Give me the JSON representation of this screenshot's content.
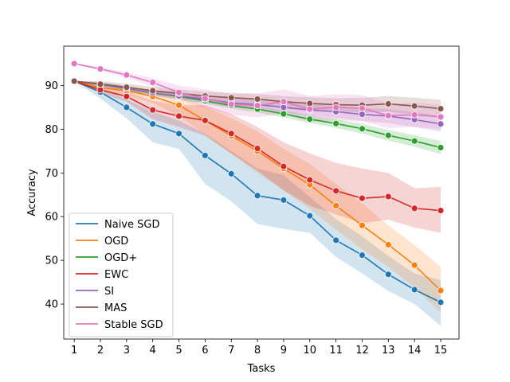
{
  "chart_data": {
    "type": "line",
    "title": "",
    "xlabel": "Tasks",
    "ylabel": "Accuracy",
    "xlim": [
      0.6,
      15.7
    ],
    "ylim": [
      32,
      99
    ],
    "x": [
      1,
      2,
      3,
      4,
      5,
      6,
      7,
      8,
      9,
      10,
      11,
      12,
      13,
      14,
      15
    ],
    "x_ticks": [
      1,
      2,
      3,
      4,
      5,
      6,
      7,
      8,
      9,
      10,
      11,
      12,
      13,
      14,
      15
    ],
    "y_ticks": [
      40,
      50,
      60,
      70,
      80,
      90
    ],
    "grid": false,
    "legend_position": "lower-left",
    "series": [
      {
        "name": "Naive SGD",
        "color": "#1f77b4",
        "values": [
          91.0,
          88.5,
          85.0,
          81.2,
          79.0,
          74.0,
          69.8,
          64.8,
          63.8,
          60.2,
          54.6,
          51.2,
          46.8,
          43.3,
          40.4
        ],
        "lower": [
          91.0,
          87.0,
          82.5,
          77.0,
          75.5,
          67.5,
          63.5,
          58.3,
          57.2,
          56.3,
          50.8,
          47.0,
          43.0,
          40.0,
          35.0
        ],
        "upper": [
          91.0,
          89.5,
          86.8,
          84.0,
          82.0,
          79.0,
          75.0,
          71.0,
          69.5,
          64.5,
          59.5,
          55.5,
          51.0,
          47.0,
          45.5
        ]
      },
      {
        "name": "OGD",
        "color": "#ff7f0e",
        "values": [
          91.0,
          89.5,
          88.8,
          87.5,
          85.5,
          82.0,
          78.5,
          75.0,
          71.0,
          67.3,
          62.5,
          58.0,
          53.6,
          48.9,
          43.1
        ],
        "lower": [
          91.0,
          88.8,
          87.8,
          86.0,
          83.0,
          78.8,
          74.3,
          70.0,
          66.0,
          61.8,
          57.0,
          52.5,
          48.5,
          43.8,
          38.0
        ],
        "upper": [
          91.0,
          90.2,
          89.8,
          88.8,
          87.8,
          85.2,
          82.5,
          79.5,
          75.5,
          72.0,
          67.5,
          63.0,
          58.0,
          53.5,
          48.5
        ]
      },
      {
        "name": "OGD+",
        "color": "#2ca02c",
        "values": [
          91.0,
          90.3,
          89.3,
          88.3,
          87.5,
          86.5,
          85.4,
          84.6,
          83.5,
          82.3,
          81.3,
          80.1,
          78.6,
          77.3,
          75.8
        ],
        "lower": [
          91.0,
          89.8,
          88.8,
          87.8,
          86.8,
          85.8,
          84.7,
          83.8,
          82.7,
          81.4,
          80.3,
          79.0,
          77.4,
          76.0,
          74.3
        ],
        "upper": [
          91.0,
          90.8,
          89.8,
          88.8,
          88.2,
          87.2,
          86.1,
          85.4,
          84.3,
          83.2,
          82.3,
          81.2,
          79.8,
          78.6,
          77.3
        ]
      },
      {
        "name": "EWC",
        "color": "#d62728",
        "values": [
          91.0,
          89.0,
          87.5,
          84.4,
          83.0,
          82.0,
          79.0,
          75.6,
          71.5,
          68.4,
          65.9,
          64.2,
          64.6,
          61.9,
          61.4
        ],
        "lower": [
          91.0,
          88.3,
          86.3,
          82.3,
          80.5,
          78.5,
          74.5,
          70.5,
          66.0,
          62.5,
          60.5,
          58.5,
          59.3,
          57.5,
          56.3
        ],
        "upper": [
          91.0,
          89.7,
          88.7,
          86.5,
          85.5,
          85.5,
          83.5,
          80.5,
          77.0,
          74.5,
          72.3,
          71.0,
          70.0,
          66.5,
          66.8
        ]
      },
      {
        "name": "SI",
        "color": "#9467bd",
        "values": [
          91.0,
          90.3,
          89.3,
          88.3,
          87.6,
          86.9,
          86.0,
          85.6,
          85.0,
          84.4,
          84.0,
          83.4,
          83.0,
          82.2,
          81.2
        ],
        "lower": [
          91.0,
          89.8,
          88.7,
          87.6,
          86.8,
          86.0,
          85.0,
          84.5,
          83.8,
          83.1,
          82.6,
          81.9,
          81.4,
          80.5,
          79.4
        ],
        "upper": [
          91.0,
          90.8,
          89.9,
          89.0,
          88.4,
          87.8,
          87.0,
          86.7,
          86.2,
          85.7,
          85.4,
          84.9,
          84.6,
          83.9,
          83.0
        ]
      },
      {
        "name": "MAS",
        "color": "#8c564b",
        "values": [
          91.0,
          90.3,
          89.6,
          88.8,
          88.2,
          87.6,
          87.2,
          86.9,
          86.3,
          85.9,
          85.6,
          85.5,
          85.8,
          85.3,
          84.7
        ],
        "lower": [
          91.0,
          89.6,
          88.8,
          87.9,
          87.3,
          86.6,
          86.1,
          85.7,
          85.0,
          84.5,
          84.1,
          83.8,
          84.0,
          83.4,
          82.7
        ],
        "upper": [
          91.0,
          91.0,
          90.4,
          89.7,
          89.1,
          88.6,
          88.3,
          88.1,
          87.6,
          87.3,
          87.1,
          87.2,
          87.6,
          87.2,
          86.7
        ]
      },
      {
        "name": "Stable SGD",
        "color": "#e377c2",
        "values": [
          95.0,
          93.8,
          92.4,
          90.7,
          88.4,
          87.0,
          85.7,
          85.4,
          86.3,
          84.6,
          85.0,
          84.8,
          83.1,
          83.3,
          82.8
        ],
        "lower": [
          95.0,
          93.4,
          91.8,
          89.8,
          86.8,
          84.9,
          83.3,
          82.7,
          83.5,
          81.6,
          82.0,
          81.8,
          80.3,
          80.5,
          80.0
        ],
        "upper": [
          95.0,
          94.2,
          93.0,
          91.6,
          90.0,
          89.1,
          88.1,
          88.1,
          89.1,
          87.6,
          88.0,
          87.8,
          85.9,
          86.1,
          85.6
        ]
      }
    ]
  }
}
